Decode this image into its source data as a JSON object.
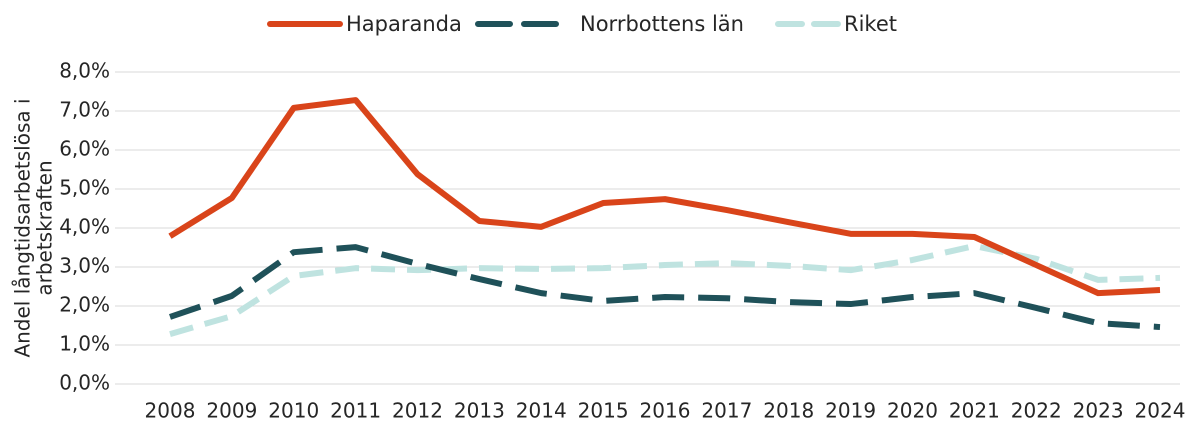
{
  "chart_data": {
    "type": "line",
    "ylabel": [
      "Andel långtidsarbetslösa i",
      "arbetskraften"
    ],
    "categories": [
      "2008",
      "2009",
      "2010",
      "2011",
      "2012",
      "2013",
      "2014",
      "2015",
      "2016",
      "2017",
      "2018",
      "2019",
      "2020",
      "2021",
      "2022",
      "2023",
      "2024"
    ],
    "series": [
      {
        "name": "Haparanda",
        "color": "#d9441a",
        "style": "solid",
        "values": [
          3.79,
          4.77,
          7.08,
          7.28,
          5.38,
          4.18,
          4.03,
          4.64,
          4.74,
          4.46,
          4.15,
          3.85,
          3.85,
          3.77,
          3.05,
          2.33,
          2.41
        ]
      },
      {
        "name": "Norrbottens län",
        "color": "#1f5159",
        "style": "dashed",
        "values": [
          1.72,
          2.26,
          3.38,
          3.51,
          3.08,
          2.69,
          2.33,
          2.13,
          2.23,
          2.2,
          2.1,
          2.05,
          2.23,
          2.33,
          1.95,
          1.56,
          1.46
        ]
      },
      {
        "name": "Riket",
        "color": "#bfe3e0",
        "style": "dashed",
        "values": [
          1.28,
          1.74,
          2.77,
          2.97,
          2.92,
          2.97,
          2.95,
          2.97,
          3.05,
          3.1,
          3.03,
          2.92,
          3.18,
          3.54,
          3.21,
          2.67,
          2.72
        ]
      }
    ],
    "ylim": [
      0,
      8
    ],
    "yticks": [
      {
        "value": 0,
        "label": "0,0%"
      },
      {
        "value": 1,
        "label": "1,0%"
      },
      {
        "value": 2,
        "label": "2,0%"
      },
      {
        "value": 3,
        "label": "3,0%"
      },
      {
        "value": 4,
        "label": "4,0%"
      },
      {
        "value": 5,
        "label": "5,0%"
      },
      {
        "value": 6,
        "label": "6,0%"
      },
      {
        "value": 7,
        "label": "7,0%"
      },
      {
        "value": 8,
        "label": "8,0%"
      }
    ],
    "grid": true,
    "legend": "top"
  }
}
